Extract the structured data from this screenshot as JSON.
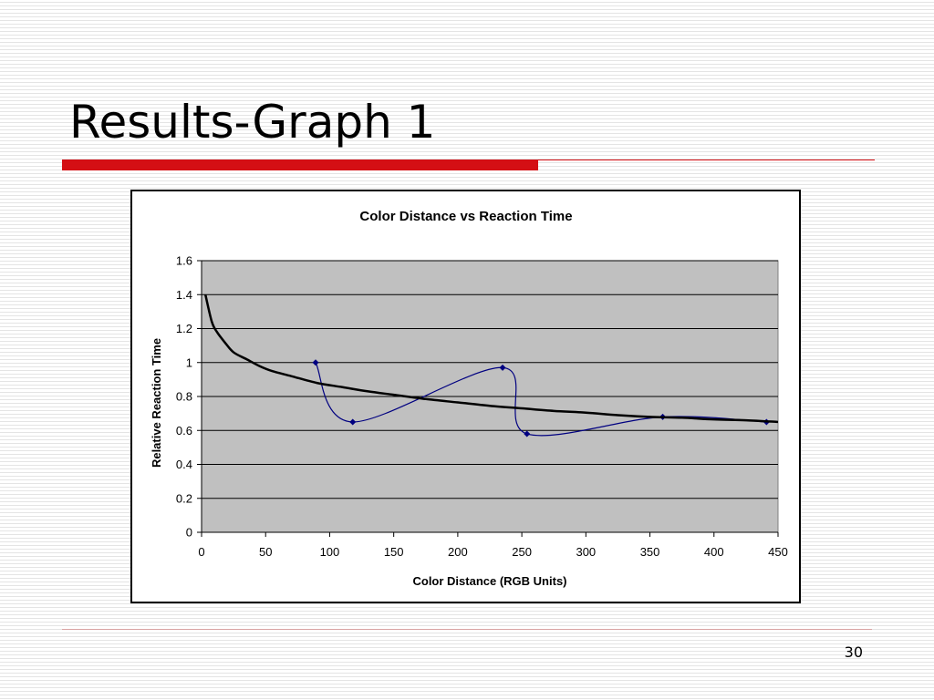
{
  "slide": {
    "title": "Results-Graph 1",
    "page_number": "30",
    "accent_color": "#d40f14"
  },
  "chart_data": {
    "type": "line",
    "title": "Color Distance vs Reaction Time",
    "xlabel": "Color Distance (RGB Units)",
    "ylabel": "Relative Reaction Time",
    "xlim": [
      0,
      450
    ],
    "ylim": [
      0,
      1.6
    ],
    "xticks": [
      0,
      50,
      100,
      150,
      200,
      250,
      300,
      350,
      400,
      450
    ],
    "yticks": [
      0,
      0.2,
      0.4,
      0.6,
      0.8,
      1,
      1.2,
      1.4,
      1.6
    ],
    "grid": true,
    "legend": "none",
    "plot_background": "#c0c0c0",
    "series": [
      {
        "kind": "scatter-smooth-line",
        "color": "#000080",
        "marker": "diamond",
        "x": [
          89,
          118,
          235,
          254,
          360,
          441
        ],
        "y": [
          1.0,
          0.65,
          0.97,
          0.58,
          0.68,
          0.65
        ]
      },
      {
        "kind": "trendline",
        "color": "#000000",
        "x": [
          3,
          8,
          12,
          18,
          25,
          35,
          45,
          55,
          70,
          90,
          110,
          130,
          150,
          175,
          200,
          225,
          250,
          275,
          300,
          325,
          350,
          375,
          400,
          425,
          450
        ],
        "y": [
          1.4,
          1.24,
          1.18,
          1.12,
          1.06,
          1.02,
          0.98,
          0.95,
          0.92,
          0.88,
          0.855,
          0.83,
          0.81,
          0.785,
          0.765,
          0.745,
          0.73,
          0.715,
          0.705,
          0.69,
          0.68,
          0.675,
          0.665,
          0.66,
          0.65
        ]
      }
    ]
  }
}
